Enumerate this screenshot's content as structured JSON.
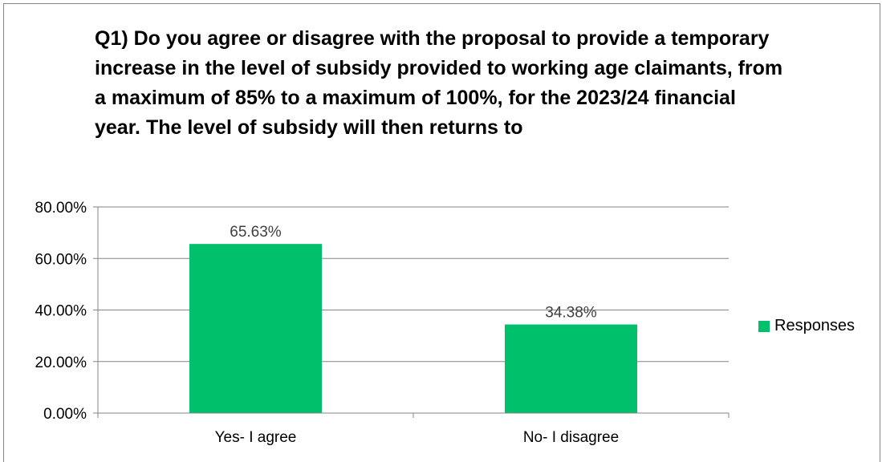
{
  "chart_data": {
    "type": "bar",
    "title": "Q1) Do you agree or disagree with the proposal to provide a temporary increase in the level of subsidy provided to working age claimants, from a maximum of 85% to a maximum of 100%, for the 2023/24 financial year. The level of subsidy will then returns to",
    "categories": [
      "Yes- I agree",
      "No- I disagree"
    ],
    "series": [
      {
        "name": "Responses",
        "values": [
          65.63,
          34.38
        ],
        "labels": [
          "65.63%",
          "34.38%"
        ]
      }
    ],
    "ylim": [
      0,
      80
    ],
    "yticks": [
      0,
      20,
      40,
      60,
      80
    ],
    "ytick_labels": [
      "0.00%",
      "20.00%",
      "40.00%",
      "60.00%",
      "80.00%"
    ],
    "grid": true,
    "legend_position": "right",
    "bar_color": "#00c06b"
  }
}
